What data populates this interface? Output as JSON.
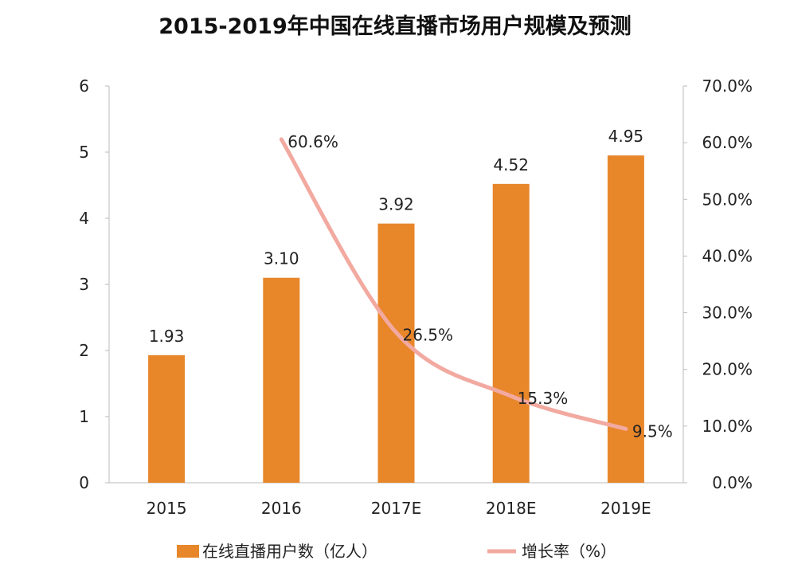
{
  "chart_data": {
    "type": "bar",
    "title": "2015-2019年中国在线直播市场用户规模及预测",
    "categories": [
      "2015",
      "2016",
      "2017E",
      "2018E",
      "2019E"
    ],
    "series": [
      {
        "name": "在线直播用户数（亿人）",
        "type": "bar",
        "axis": "left",
        "values": [
          1.93,
          3.1,
          3.92,
          4.52,
          4.95
        ],
        "labels": [
          "1.93",
          "3.10",
          "3.92",
          "4.52",
          "4.95"
        ],
        "color": "#E8862A"
      },
      {
        "name": "增长率（%）",
        "type": "line",
        "axis": "right",
        "values": [
          null,
          60.6,
          26.5,
          15.3,
          9.5
        ],
        "labels": [
          "",
          "60.6%",
          "26.5%",
          "15.3%",
          "9.5%"
        ],
        "color": "#F2A9A0"
      }
    ],
    "yleft": {
      "ylim": [
        0,
        6
      ],
      "ticks": [
        "0",
        "1",
        "2",
        "3",
        "4",
        "5",
        "6"
      ]
    },
    "yright": {
      "ylim": [
        0,
        70
      ],
      "ticks": [
        "0.0%",
        "10.0%",
        "20.0%",
        "30.0%",
        "40.0%",
        "50.0%",
        "60.0%",
        "70.0%"
      ]
    },
    "legend": "bottom",
    "grid": false
  }
}
